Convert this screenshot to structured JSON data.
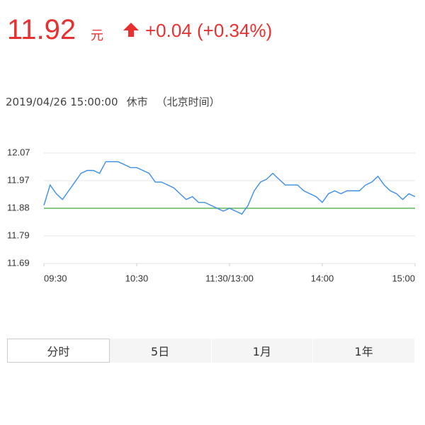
{
  "header": {
    "price": "11.92",
    "unit": "元",
    "change": "+0.04 (+0.34%)"
  },
  "status": {
    "time": "2019/04/26 15:00:00",
    "state": "休市",
    "note": "（北京时间）"
  },
  "chart_data": {
    "type": "line",
    "x": [
      0,
      4,
      8,
      12,
      16,
      20,
      24,
      28,
      32,
      36,
      40,
      44,
      48,
      52,
      56,
      60,
      64,
      68,
      72,
      76,
      80,
      84,
      88,
      92,
      96,
      100,
      104,
      108,
      112,
      116,
      120,
      124,
      128,
      132,
      136,
      140,
      144,
      148,
      152,
      156,
      160,
      164,
      168,
      172,
      176,
      180,
      184,
      188,
      192,
      196,
      200,
      204,
      208,
      212,
      216,
      220,
      224,
      228,
      232,
      236,
      240
    ],
    "series": [
      {
        "color": "#3c8ee8",
        "values": [
          11.89,
          11.96,
          11.93,
          11.91,
          11.94,
          11.97,
          12.0,
          12.01,
          12.01,
          12.0,
          12.04,
          12.04,
          12.04,
          12.03,
          12.02,
          12.02,
          12.01,
          12.0,
          11.97,
          11.97,
          11.96,
          11.95,
          11.93,
          11.91,
          11.92,
          11.9,
          11.9,
          11.89,
          11.88,
          11.87,
          11.88,
          11.87,
          11.86,
          11.89,
          11.94,
          11.97,
          11.98,
          12.0,
          11.98,
          11.96,
          11.96,
          11.96,
          11.94,
          11.93,
          11.92,
          11.9,
          11.93,
          11.94,
          11.93,
          11.94,
          11.94,
          11.94,
          11.96,
          11.97,
          11.99,
          11.96,
          11.94,
          11.93,
          11.91,
          11.93,
          11.92
        ]
      }
    ],
    "baseline": {
      "value": 11.88,
      "color": "#5cb85c"
    },
    "xlim": [
      0,
      240
    ],
    "xticks": [
      {
        "value": 0,
        "label": "09:30"
      },
      {
        "value": 60,
        "label": "10:30"
      },
      {
        "value": 120,
        "label": "11:30/13:00"
      },
      {
        "value": 180,
        "label": "14:00"
      },
      {
        "value": 240,
        "label": "15:00"
      }
    ],
    "ylim": [
      11.69,
      12.07
    ],
    "yticks": [
      12.07,
      {
        "value": 11.975,
        "label": "11.97"
      },
      11.88,
      {
        "value": 11.785,
        "label": "11.79"
      },
      11.69
    ],
    "grid": true
  },
  "tabs": {
    "items": [
      "分时",
      "5日",
      "1月",
      "1年"
    ],
    "active": 0
  }
}
